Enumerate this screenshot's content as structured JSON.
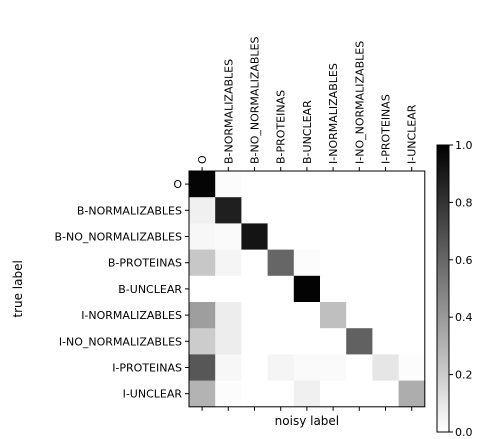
{
  "chart_data": {
    "type": "heatmap",
    "xlabel": "noisy label",
    "ylabel": "true label",
    "x_categories": [
      "O",
      "B-NORMALIZABLES",
      "B-NO_NORMALIZABLES",
      "B-PROTEINAS",
      "B-UNCLEAR",
      "I-NORMALIZABLES",
      "I-NO_NORMALIZABLES",
      "I-PROTEINAS",
      "I-UNCLEAR"
    ],
    "y_categories": [
      "O",
      "B-NORMALIZABLES",
      "B-NO_NORMALIZABLES",
      "B-PROTEINAS",
      "B-UNCLEAR",
      "I-NORMALIZABLES",
      "I-NO_NORMALIZABLES",
      "I-PROTEINAS",
      "I-UNCLEAR"
    ],
    "values": [
      [
        0.98,
        0.01,
        0.0,
        0.0,
        0.0,
        0.0,
        0.0,
        0.0,
        0.0
      ],
      [
        0.06,
        0.88,
        0.0,
        0.0,
        0.0,
        0.0,
        0.0,
        0.0,
        0.0
      ],
      [
        0.03,
        0.02,
        0.92,
        0.0,
        0.0,
        0.0,
        0.0,
        0.0,
        0.0
      ],
      [
        0.22,
        0.04,
        0.0,
        0.6,
        0.01,
        0.0,
        0.0,
        0.0,
        0.0
      ],
      [
        0.0,
        0.0,
        0.0,
        0.0,
        0.99,
        0.0,
        0.0,
        0.0,
        0.0
      ],
      [
        0.38,
        0.07,
        0.0,
        0.0,
        0.0,
        0.25,
        0.0,
        0.0,
        0.0
      ],
      [
        0.2,
        0.07,
        0.0,
        0.0,
        0.0,
        0.0,
        0.62,
        0.0,
        0.0
      ],
      [
        0.66,
        0.03,
        0.0,
        0.04,
        0.02,
        0.02,
        0.0,
        0.1,
        0.01
      ],
      [
        0.3,
        0.01,
        0.0,
        0.0,
        0.06,
        0.0,
        0.0,
        0.0,
        0.32
      ]
    ],
    "colormap": "Greys",
    "vmin": 0.0,
    "vmax": 1.0,
    "colorbar_ticks": [
      "0.0",
      "0.2",
      "0.4",
      "0.6",
      "0.8",
      "1.0"
    ],
    "x_tick_labels_position": "top, rotated vertical",
    "grid": false
  }
}
